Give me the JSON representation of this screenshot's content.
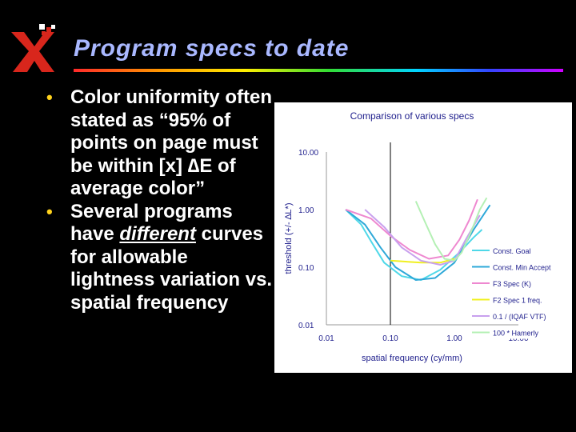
{
  "slide": {
    "title": "Program specs to date",
    "bullets": [
      {
        "text": "Color uniformity often stated as “95% of points on page must be within [x] ∆E of average color”"
      },
      {
        "pre": "Several programs have ",
        "em": "different",
        "post": " curves for allowable lightness variation vs. spatial frequency"
      }
    ]
  },
  "chart_data": {
    "type": "line",
    "title": "Comparison of various specs",
    "xlabel": "spatial frequency (cy/mm)",
    "ylabel": "threshold (+/- ∆L*)",
    "xscale": "log",
    "yscale": "log",
    "xlim": [
      0.01,
      10
    ],
    "ylim": [
      0.01,
      10
    ],
    "xticks": [
      "0.01",
      "0.10",
      "1.00",
      "10.00"
    ],
    "yticks": [
      "10.00",
      "1.00",
      "0.10",
      "0.01"
    ],
    "vline_x": 0.1,
    "legend_position": "right",
    "series": [
      {
        "name": "Const. Goal",
        "color": "#4fd8e8",
        "points": [
          [
            0.02,
            1.0
          ],
          [
            0.035,
            0.55
          ],
          [
            0.05,
            0.28
          ],
          [
            0.08,
            0.12
          ],
          [
            0.15,
            0.07
          ],
          [
            0.3,
            0.06
          ],
          [
            0.6,
            0.09
          ],
          [
            1.2,
            0.18
          ],
          [
            2,
            0.33
          ],
          [
            2.7,
            0.45
          ]
        ]
      },
      {
        "name": "Const. Min Accept",
        "color": "#2ea8d8",
        "points": [
          [
            0.02,
            1.0
          ],
          [
            0.04,
            0.55
          ],
          [
            0.07,
            0.22
          ],
          [
            0.12,
            0.1
          ],
          [
            0.25,
            0.06
          ],
          [
            0.5,
            0.065
          ],
          [
            1.0,
            0.12
          ],
          [
            2,
            0.45
          ],
          [
            3.6,
            1.2
          ]
        ]
      },
      {
        "name": "F3 Spec (K)",
        "color": "#ee88d0",
        "points": [
          [
            0.02,
            1.0
          ],
          [
            0.05,
            0.7
          ],
          [
            0.1,
            0.35
          ],
          [
            0.2,
            0.2
          ],
          [
            0.4,
            0.14
          ],
          [
            0.8,
            0.16
          ],
          [
            1.2,
            0.3
          ],
          [
            1.7,
            0.65
          ],
          [
            2.3,
            1.5
          ]
        ]
      },
      {
        "name": "F2 Spec 1 freq.",
        "color": "#f0f020",
        "points": [
          [
            0.1,
            0.13
          ],
          [
            0.3,
            0.12
          ],
          [
            0.6,
            0.12
          ],
          [
            1.0,
            0.14
          ]
        ]
      },
      {
        "name": "0.1 / (IQAF VTF)",
        "color": "#c8a0ee",
        "points": [
          [
            0.04,
            1.0
          ],
          [
            0.08,
            0.5
          ],
          [
            0.15,
            0.22
          ],
          [
            0.3,
            0.13
          ],
          [
            0.6,
            0.11
          ],
          [
            1.0,
            0.13
          ],
          [
            1.5,
            0.3
          ],
          [
            2.5,
            0.8
          ]
        ]
      },
      {
        "name": "100 * Hamerly",
        "color": "#b4f0b4",
        "points": [
          [
            0.25,
            1.4
          ],
          [
            0.35,
            0.6
          ],
          [
            0.5,
            0.25
          ],
          [
            0.7,
            0.14
          ],
          [
            1.0,
            0.13
          ],
          [
            1.3,
            0.18
          ],
          [
            1.8,
            0.4
          ],
          [
            2.5,
            1.0
          ],
          [
            3.2,
            1.6
          ]
        ]
      }
    ]
  }
}
